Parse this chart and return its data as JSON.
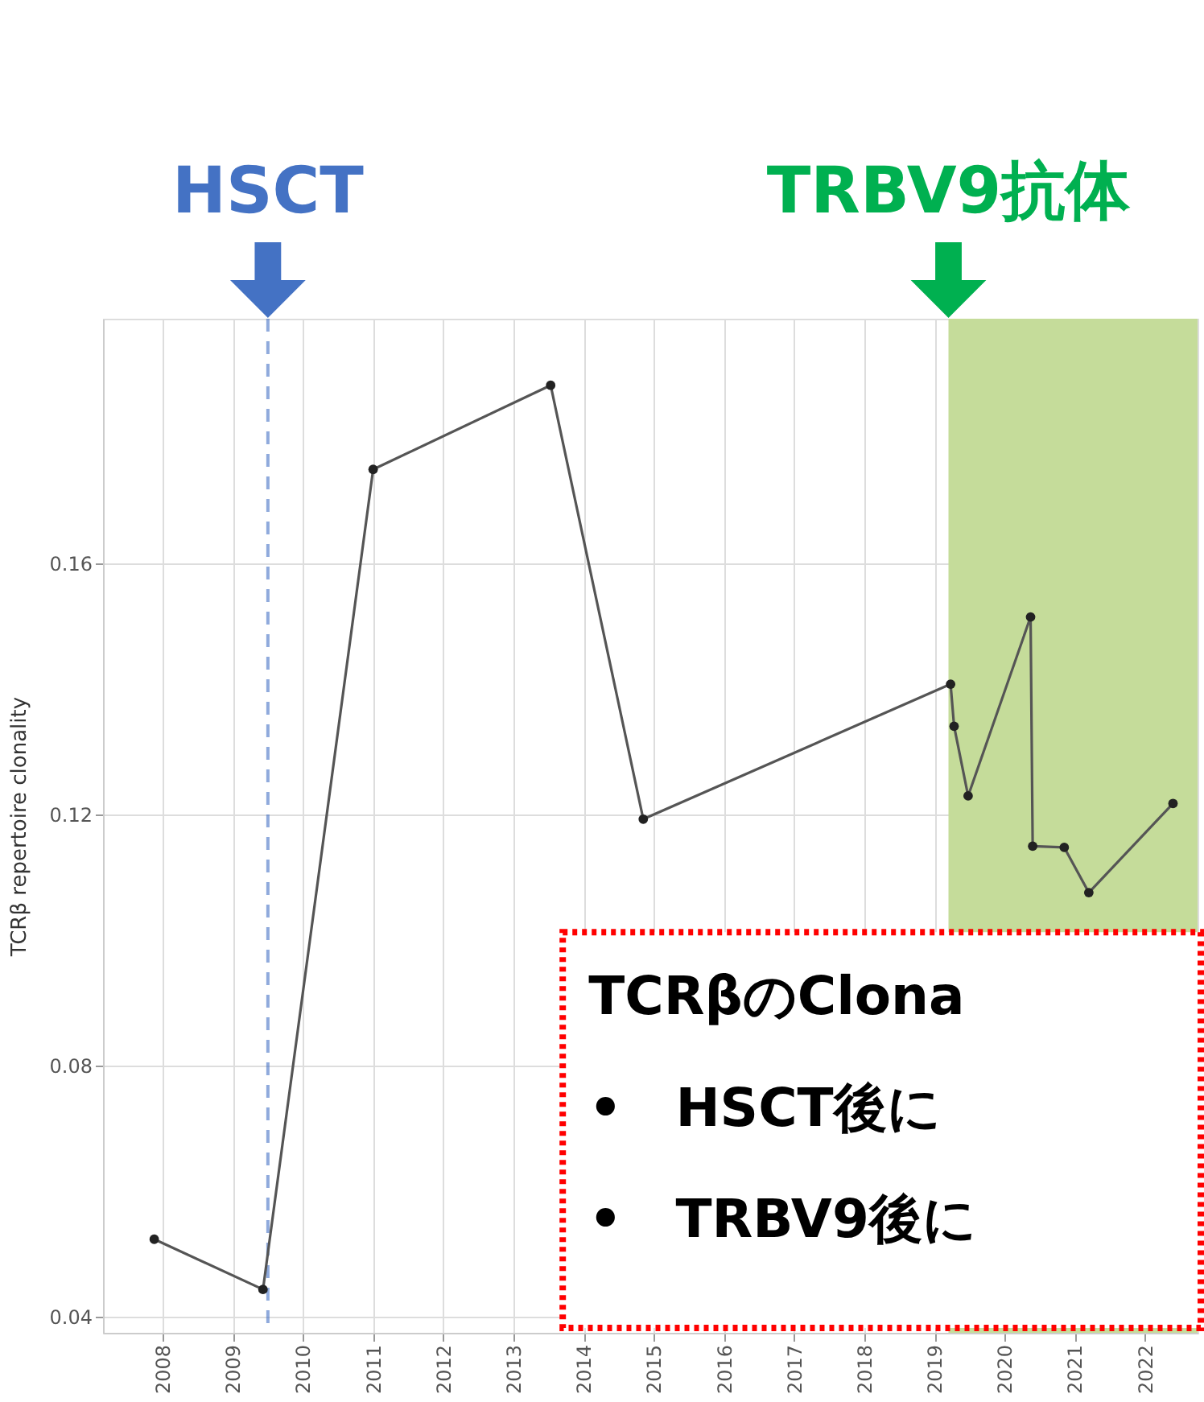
{
  "chart_data": {
    "type": "line",
    "ylabel": "TCRβ repertoire clonality",
    "x": [
      2007.88,
      2009.43,
      2011.0,
      2013.53,
      2014.85,
      2019.23,
      2019.28,
      2019.48,
      2020.37,
      2020.4,
      2020.85,
      2021.2,
      2022.4
    ],
    "series": [
      {
        "color": "#555555",
        "values": [
          0.0524,
          0.0444,
          0.175,
          0.1884,
          0.1193,
          0.1408,
          0.1341,
          0.123,
          0.1515,
          0.115,
          0.1148,
          0.1076,
          0.1218
        ]
      }
    ],
    "xlim": [
      2007.15,
      2022.75
    ],
    "ylim": [
      0.0375,
      0.199
    ],
    "xticks": [
      2008,
      2009,
      2010,
      2011,
      2012,
      2013,
      2014,
      2015,
      2016,
      2017,
      2018,
      2019,
      2020,
      2021,
      2022
    ],
    "yticks": [
      0.04,
      0.08,
      0.12,
      0.16
    ],
    "grid": true,
    "marker": "circle",
    "line_style": "solid",
    "ref_lines": [
      {
        "axis": "x",
        "value": 2009.5,
        "label": "HSCT",
        "color": "#4472c4",
        "line_style": "dashed"
      }
    ],
    "bands": [
      {
        "axis": "x",
        "from": 2019.2,
        "to": 2022.75,
        "label": "TRBV9抗体",
        "color": "#c5dc9a"
      }
    ],
    "annotations": [
      "TCRβのClona",
      "•　HSCT後に",
      "•　TRBV9後に"
    ]
  }
}
